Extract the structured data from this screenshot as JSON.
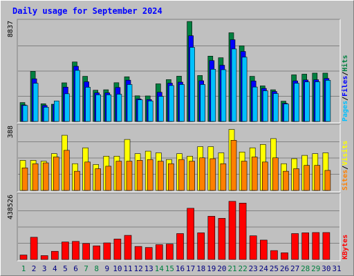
{
  "chart_data": {
    "type": "bar",
    "title": "Daily usage for September 2024",
    "categories": [
      "1",
      "2",
      "3",
      "4",
      "5",
      "6",
      "7",
      "8",
      "9",
      "10",
      "11",
      "12",
      "13",
      "14",
      "15",
      "16",
      "17",
      "18",
      "19",
      "20",
      "21",
      "22",
      "23",
      "24",
      "25",
      "26",
      "27",
      "28",
      "29",
      "30",
      "31"
    ],
    "weekend_days": [
      "1",
      "7",
      "8",
      "14",
      "15",
      "21",
      "22",
      "28",
      "29"
    ],
    "panels": [
      {
        "id": "pages-files-hits",
        "ymax_label": "8837",
        "ylim": [
          0,
          8837
        ],
        "legend": [
          "Pages",
          "/",
          "Files",
          "/",
          "Hits"
        ],
        "series": [
          {
            "name": "Hits",
            "color": "#008040",
            "values": [
              1660,
              4400,
              1550,
              1510,
              3390,
              5220,
              3960,
              2740,
              2780,
              3400,
              3920,
              2250,
              2240,
              3300,
              3670,
              3970,
              8770,
              4030,
              5730,
              5590,
              7780,
              6640,
              3960,
              3120,
              2780,
              1780,
              4090,
              4150,
              4240,
              4240,
              0
            ]
          },
          {
            "name": "Files",
            "color": "#0000ff",
            "values": [
              1450,
              3740,
              1400,
              1500,
              3010,
              4840,
              3480,
              2510,
              2510,
              2980,
              3620,
              1980,
              1920,
              2560,
              3360,
              3450,
              7520,
              3570,
              5340,
              4930,
              7170,
              6140,
              3550,
              2900,
              2630,
              1590,
              3560,
              3640,
              3660,
              3770,
              0
            ]
          },
          {
            "name": "Pages",
            "color": "#00c0ff",
            "values": [
              1400,
              3350,
              1250,
              1800,
              2430,
              4480,
              3000,
              2340,
              2340,
              2390,
              3240,
              1900,
              1800,
              2200,
              3150,
              3240,
              6500,
              3240,
              4580,
              4540,
              6360,
              5640,
              3020,
              2690,
              2450,
              1530,
              3350,
              3470,
              3480,
              3610,
              0
            ]
          }
        ]
      },
      {
        "id": "visits-sites",
        "ymax_label": "388",
        "ylim": [
          0,
          388
        ],
        "legend": [
          "Sites",
          "/",
          "Visits"
        ],
        "series": [
          {
            "name": "Visits",
            "color": "#ffff00",
            "values": [
              180,
              180,
              175,
              220,
              330,
              160,
              255,
              155,
              205,
              205,
              305,
              220,
              235,
              225,
              185,
              220,
              205,
              262,
              262,
              225,
              365,
              230,
              255,
              275,
              310,
              160,
              190,
              210,
              220,
              225,
              0
            ]
          },
          {
            "name": "Sites",
            "color": "#ff8000",
            "values": [
              135,
              160,
              165,
              200,
              240,
              115,
              170,
              130,
              145,
              175,
              175,
              180,
              185,
              175,
              160,
              185,
              175,
              195,
              190,
              160,
              300,
              175,
              200,
              170,
              195,
              115,
              130,
              150,
              150,
              120,
              0
            ]
          }
        ]
      },
      {
        "id": "kbytes",
        "ymax_label": "438526",
        "ylim": [
          0,
          438526
        ],
        "legend": [
          "KBytes"
        ],
        "series": [
          {
            "name": "KBytes",
            "color": "#ff0000",
            "values": [
              30000,
              150000,
              26000,
              55000,
              118000,
              122000,
              108000,
              92000,
              112000,
              138000,
              163000,
              88000,
              81000,
              100000,
              104000,
              175000,
              346000,
              180000,
              292000,
              278000,
              393000,
              381000,
              160000,
              131000,
              60000,
              45000,
              175000,
              180000,
              182000,
              182000,
              0
            ]
          }
        ]
      }
    ],
    "axis_colors": {
      "weekday": "#000080",
      "weekend": "#008040"
    },
    "title_color": "#0000ff",
    "grid": true
  }
}
